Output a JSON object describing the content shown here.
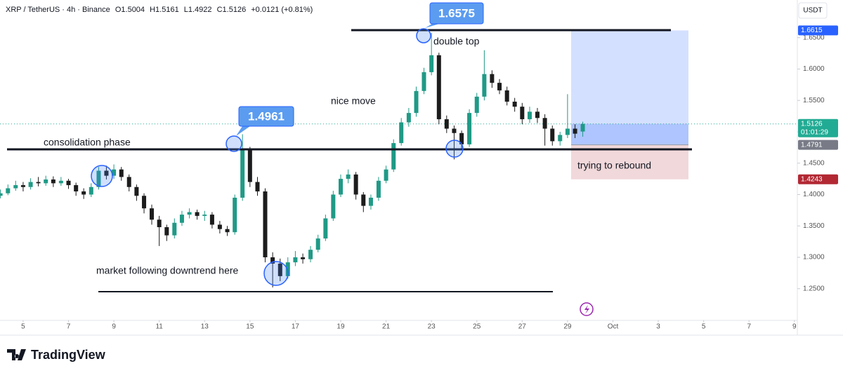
{
  "chart_data": {
    "type": "candlestick",
    "header": [
      "XRP / TetherUS · 4h · Binance",
      "O1.5004",
      "H1.5161",
      "L1.4922",
      "C1.5126",
      "+0.0121 (+0.81%)"
    ],
    "currency": "USDT",
    "countdown": "01:01:29",
    "brand": "TradingView",
    "annotations": [
      "double top",
      "nice move",
      "consolidation phase",
      "trying to rebound",
      "market following downtrend here"
    ],
    "up_color": "#1f9a86",
    "down_color": "#1c1c1c",
    "x": [
      4,
      4.33,
      4.67,
      5,
      5.33,
      5.67,
      6,
      6.33,
      6.67,
      7,
      7.33,
      7.67,
      8,
      8.33,
      8.67,
      9,
      9.33,
      9.67,
      10,
      10.33,
      10.67,
      11,
      11.33,
      11.67,
      12,
      12.33,
      12.67,
      13,
      13.33,
      13.67,
      14,
      14.33,
      14.67,
      15,
      15.33,
      15.67,
      16,
      16.33,
      16.67,
      17,
      17.33,
      17.67,
      18,
      18.33,
      18.67,
      19,
      19.33,
      19.67,
      20,
      20.33,
      20.67,
      21,
      21.33,
      21.67,
      22,
      22.33,
      22.67,
      23,
      23.33,
      23.67,
      24,
      24.33,
      24.67,
      25,
      25.33,
      25.67,
      26,
      26.33,
      26.67,
      27,
      27.33,
      27.67,
      28,
      28.33,
      28.67,
      29,
      29.33,
      29.67
    ],
    "open": [
      1.398,
      1.402,
      1.41,
      1.415,
      1.412,
      1.42,
      1.418,
      1.424,
      1.418,
      1.422,
      1.415,
      1.405,
      1.4,
      1.412,
      1.438,
      1.43,
      1.44,
      1.428,
      1.412,
      1.398,
      1.378,
      1.36,
      1.348,
      1.335,
      1.355,
      1.368,
      1.372,
      1.366,
      1.368,
      1.352,
      1.345,
      1.34,
      1.395,
      1.472,
      1.42,
      1.405,
      1.3,
      1.29,
      1.27,
      1.292,
      1.3,
      1.297,
      1.312,
      1.33,
      1.362,
      1.4,
      1.425,
      1.432,
      1.4,
      1.382,
      1.395,
      1.422,
      1.44,
      1.482,
      1.515,
      1.53,
      1.565,
      1.595,
      1.622,
      1.52,
      1.505,
      1.498,
      1.48,
      1.53,
      1.556,
      1.592,
      1.578,
      1.566,
      1.548,
      1.54,
      1.52,
      1.532,
      1.522,
      1.505,
      1.485,
      1.495,
      1.505,
      1.5004
    ],
    "high": [
      1.408,
      1.416,
      1.422,
      1.42,
      1.426,
      1.428,
      1.43,
      1.429,
      1.428,
      1.425,
      1.419,
      1.41,
      1.418,
      1.444,
      1.446,
      1.448,
      1.444,
      1.432,
      1.416,
      1.402,
      1.384,
      1.366,
      1.352,
      1.362,
      1.374,
      1.378,
      1.376,
      1.374,
      1.372,
      1.358,
      1.35,
      1.4,
      1.4961,
      1.476,
      1.428,
      1.41,
      1.308,
      1.298,
      1.3,
      1.31,
      1.306,
      1.318,
      1.336,
      1.368,
      1.406,
      1.432,
      1.44,
      1.436,
      1.404,
      1.4,
      1.428,
      1.446,
      1.488,
      1.522,
      1.538,
      1.572,
      1.602,
      1.6575,
      1.626,
      1.526,
      1.51,
      1.502,
      1.536,
      1.562,
      1.63,
      1.598,
      1.584,
      1.572,
      1.554,
      1.546,
      1.54,
      1.538,
      1.528,
      1.51,
      1.5,
      1.56,
      1.512,
      1.5161
    ],
    "low": [
      1.394,
      1.399,
      1.406,
      1.405,
      1.408,
      1.413,
      1.414,
      1.412,
      1.414,
      1.409,
      1.398,
      1.393,
      1.396,
      1.408,
      1.424,
      1.425,
      1.422,
      1.405,
      1.39,
      1.37,
      1.352,
      1.318,
      1.326,
      1.33,
      1.35,
      1.362,
      1.36,
      1.358,
      1.346,
      1.338,
      1.334,
      1.336,
      1.39,
      1.412,
      1.398,
      1.292,
      1.252,
      1.262,
      1.266,
      1.286,
      1.29,
      1.292,
      1.308,
      1.326,
      1.358,
      1.396,
      1.418,
      1.392,
      1.372,
      1.376,
      1.39,
      1.418,
      1.436,
      1.478,
      1.508,
      1.524,
      1.56,
      1.59,
      1.512,
      1.498,
      1.456,
      1.472,
      1.476,
      1.524,
      1.55,
      1.57,
      1.56,
      1.542,
      1.532,
      1.512,
      1.514,
      1.514,
      1.478,
      1.478,
      1.478,
      1.49,
      1.49,
      1.4922
    ],
    "close": [
      1.402,
      1.41,
      1.415,
      1.412,
      1.42,
      1.418,
      1.424,
      1.418,
      1.422,
      1.415,
      1.405,
      1.4,
      1.412,
      1.438,
      1.43,
      1.44,
      1.428,
      1.412,
      1.398,
      1.378,
      1.36,
      1.348,
      1.335,
      1.355,
      1.368,
      1.372,
      1.366,
      1.368,
      1.352,
      1.345,
      1.34,
      1.395,
      1.472,
      1.42,
      1.405,
      1.3,
      1.29,
      1.27,
      1.292,
      1.3,
      1.297,
      1.312,
      1.33,
      1.362,
      1.4,
      1.425,
      1.432,
      1.4,
      1.382,
      1.395,
      1.422,
      1.44,
      1.482,
      1.515,
      1.53,
      1.565,
      1.595,
      1.622,
      1.52,
      1.505,
      1.498,
      1.48,
      1.53,
      1.556,
      1.592,
      1.578,
      1.566,
      1.548,
      1.54,
      1.52,
      1.532,
      1.522,
      1.505,
      1.485,
      1.495,
      1.505,
      1.497,
      1.5126
    ],
    "position": {
      "target": 1.6615,
      "entry": 1.4791,
      "stop": 1.4243
    },
    "xlim": [
      3.98,
      39.13
    ],
    "xticks": [
      5,
      7,
      9,
      11,
      13,
      15,
      17,
      19,
      21,
      23,
      25,
      27,
      29,
      {
        "value": 31,
        "label": "Oct"
      },
      {
        "value": 33,
        "label": "3"
      },
      {
        "value": 35,
        "label": "5"
      },
      {
        "value": 37,
        "label": "7"
      },
      {
        "value": 39,
        "label": "9"
      }
    ],
    "ylim": [
      1.2,
      1.71
    ],
    "yticks": [
      {
        "value": 1.25,
        "label": "1.2500"
      },
      {
        "value": 1.3,
        "label": "1.3000"
      },
      {
        "value": 1.35,
        "label": "1.3500"
      },
      {
        "value": 1.4,
        "label": "1.4000"
      },
      {
        "value": 1.45,
        "label": "1.4500"
      },
      {
        "value": 1.5,
        "label": "1.5000"
      },
      {
        "value": 1.55,
        "label": "1.5500"
      },
      {
        "value": 1.6,
        "label": "1.6000"
      },
      {
        "value": 1.65,
        "label": "1.6500"
      }
    ]
  }
}
